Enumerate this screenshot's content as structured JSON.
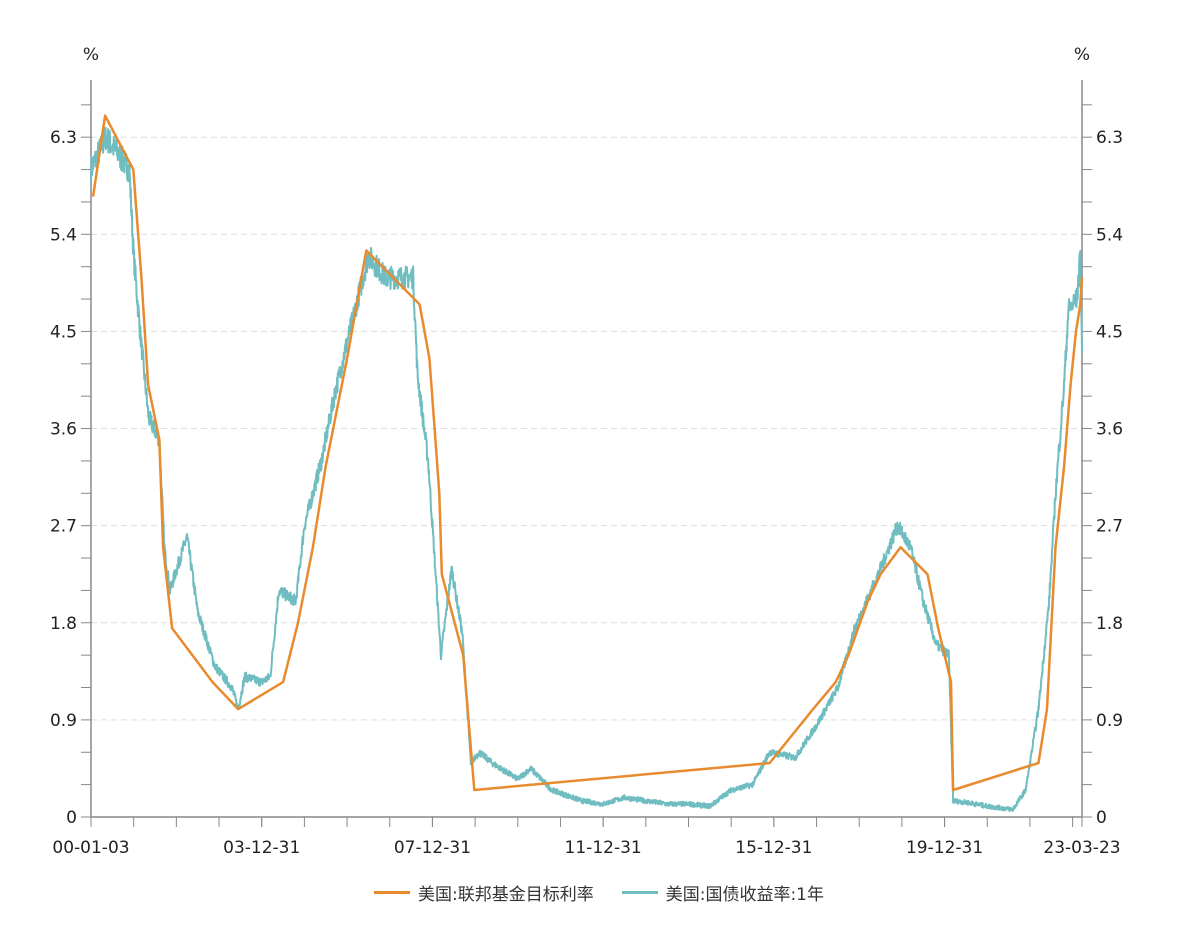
{
  "chart_data": {
    "type": "line",
    "title": "",
    "ylabel_left": "%",
    "ylabel_right": "%",
    "ylim": [
      0,
      6.83
    ],
    "yticks": [
      "0",
      "0.9",
      "1.8",
      "2.7",
      "3.6",
      "4.5",
      "5.4",
      "6.3"
    ],
    "xlim": [
      2000.0,
      2023.22
    ],
    "xticks": [
      {
        "label": "00-01-03",
        "t": 2000.0
      },
      {
        "label": "03-12-31",
        "t": 2004.0
      },
      {
        "label": "07-12-31",
        "t": 2008.0
      },
      {
        "label": "11-12-31",
        "t": 2012.0
      },
      {
        "label": "15-12-31",
        "t": 2016.0
      },
      {
        "label": "19-12-31",
        "t": 2020.0
      },
      {
        "label": "23-03-23",
        "t": 2023.22
      }
    ],
    "grid": "horizontal-dashed",
    "legend_position": "bottom",
    "series": [
      {
        "name": "美国:联邦基金目标利率",
        "color": "#E88A2E",
        "points": [
          [
            2000.05,
            5.75
          ],
          [
            2000.33,
            6.5
          ],
          [
            2000.99,
            6.0
          ],
          [
            2001.18,
            5.0
          ],
          [
            2001.34,
            4.0
          ],
          [
            2001.6,
            3.5
          ],
          [
            2001.69,
            2.5
          ],
          [
            2001.9,
            1.75
          ],
          [
            2002.85,
            1.25
          ],
          [
            2003.45,
            1.0
          ],
          [
            2004.5,
            1.25
          ],
          [
            2004.85,
            1.8
          ],
          [
            2005.2,
            2.5
          ],
          [
            2005.5,
            3.25
          ],
          [
            2006.0,
            4.25
          ],
          [
            2006.45,
            5.25
          ],
          [
            2007.7,
            4.75
          ],
          [
            2007.93,
            4.25
          ],
          [
            2008.07,
            3.5
          ],
          [
            2008.16,
            3.0
          ],
          [
            2008.22,
            2.25
          ],
          [
            2008.72,
            1.5
          ],
          [
            2008.98,
            0.25
          ],
          [
            2015.9,
            0.5
          ],
          [
            2016.92,
            1.0
          ],
          [
            2017.45,
            1.25
          ],
          [
            2017.75,
            1.5
          ],
          [
            2018.2,
            2.0
          ],
          [
            2018.5,
            2.25
          ],
          [
            2018.97,
            2.5
          ],
          [
            2019.6,
            2.25
          ],
          [
            2019.85,
            1.75
          ],
          [
            2020.15,
            1.25
          ],
          [
            2020.2,
            0.25
          ],
          [
            2022.2,
            0.5
          ],
          [
            2022.4,
            1.0
          ],
          [
            2022.6,
            2.5
          ],
          [
            2022.8,
            3.25
          ],
          [
            2022.95,
            4.0
          ],
          [
            2023.08,
            4.5
          ],
          [
            2023.18,
            4.75
          ],
          [
            2023.22,
            5.0
          ]
        ]
      },
      {
        "name": "美国:国债收益率:1年",
        "color": "#6FBDC0",
        "points": [
          [
            2000.0,
            6.0
          ],
          [
            2000.35,
            6.3
          ],
          [
            2000.9,
            6.0
          ],
          [
            2001.0,
            5.2
          ],
          [
            2001.15,
            4.5
          ],
          [
            2001.35,
            3.7
          ],
          [
            2001.6,
            3.5
          ],
          [
            2001.72,
            2.5
          ],
          [
            2001.85,
            2.1
          ],
          [
            2002.25,
            2.6
          ],
          [
            2002.5,
            1.9
          ],
          [
            2002.9,
            1.4
          ],
          [
            2003.3,
            1.2
          ],
          [
            2003.45,
            1.0
          ],
          [
            2003.6,
            1.3
          ],
          [
            2004.0,
            1.25
          ],
          [
            2004.2,
            1.3
          ],
          [
            2004.4,
            2.1
          ],
          [
            2004.8,
            2.0
          ],
          [
            2005.0,
            2.7
          ],
          [
            2005.4,
            3.3
          ],
          [
            2005.7,
            3.9
          ],
          [
            2006.0,
            4.4
          ],
          [
            2006.5,
            5.2
          ],
          [
            2006.9,
            5.0
          ],
          [
            2007.3,
            5.0
          ],
          [
            2007.55,
            5.0
          ],
          [
            2007.65,
            4.1
          ],
          [
            2007.9,
            3.3
          ],
          [
            2008.0,
            2.7
          ],
          [
            2008.2,
            1.5
          ],
          [
            2008.45,
            2.3
          ],
          [
            2008.7,
            1.7
          ],
          [
            2008.9,
            0.5
          ],
          [
            2009.1,
            0.6
          ],
          [
            2009.4,
            0.5
          ],
          [
            2010.0,
            0.35
          ],
          [
            2010.3,
            0.45
          ],
          [
            2010.8,
            0.25
          ],
          [
            2011.5,
            0.15
          ],
          [
            2012.0,
            0.12
          ],
          [
            2012.5,
            0.18
          ],
          [
            2013.0,
            0.15
          ],
          [
            2013.5,
            0.12
          ],
          [
            2014.0,
            0.12
          ],
          [
            2014.5,
            0.1
          ],
          [
            2015.0,
            0.25
          ],
          [
            2015.5,
            0.3
          ],
          [
            2015.9,
            0.6
          ],
          [
            2016.5,
            0.55
          ],
          [
            2017.0,
            0.85
          ],
          [
            2017.5,
            1.2
          ],
          [
            2017.9,
            1.75
          ],
          [
            2018.5,
            2.3
          ],
          [
            2018.9,
            2.7
          ],
          [
            2019.2,
            2.5
          ],
          [
            2019.5,
            2.0
          ],
          [
            2019.8,
            1.6
          ],
          [
            2020.1,
            1.5
          ],
          [
            2020.2,
            0.15
          ],
          [
            2020.6,
            0.13
          ],
          [
            2021.0,
            0.1
          ],
          [
            2021.6,
            0.07
          ],
          [
            2021.9,
            0.25
          ],
          [
            2022.2,
            1.0
          ],
          [
            2022.45,
            2.0
          ],
          [
            2022.6,
            3.0
          ],
          [
            2022.8,
            4.0
          ],
          [
            2022.9,
            4.7
          ],
          [
            2023.1,
            4.8
          ],
          [
            2023.18,
            5.2
          ],
          [
            2023.22,
            4.3
          ]
        ]
      }
    ]
  }
}
